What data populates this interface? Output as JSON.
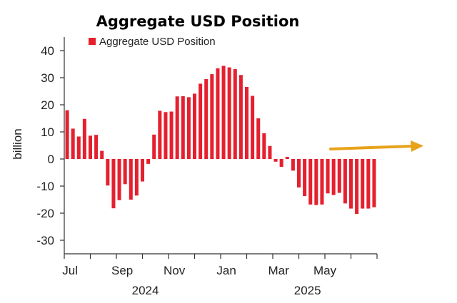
{
  "colors": {
    "bar": "#e5202e",
    "axis": "#333333",
    "annotation_arrow": "#e8a21a"
  },
  "annotation": {
    "icon": "arrow-right-icon"
  },
  "chart_data": {
    "type": "bar",
    "title": "Aggregate USD Position",
    "ylabel": "billion",
    "xlabel": "",
    "legend": {
      "position": "top-left",
      "entries": [
        "Aggregate USD Position"
      ]
    },
    "ylim": [
      -35,
      45
    ],
    "yticks": [
      40,
      30,
      20,
      10,
      0,
      -10,
      -20,
      -30
    ],
    "grid": false,
    "x_tick_labels": [
      {
        "label": "Jul",
        "index": 0.5
      },
      {
        "label": "Sep",
        "index": 9.5
      },
      {
        "label": "Nov",
        "index": 18.5
      },
      {
        "label": "Jan",
        "index": 27.5
      },
      {
        "label": "Mar",
        "index": 36.5
      },
      {
        "label": "May",
        "index": 44.5
      }
    ],
    "year_labels": [
      {
        "label": "2024",
        "index": 13.5
      },
      {
        "label": "2025",
        "index": 41.5
      }
    ],
    "series": [
      {
        "name": "Aggregate USD Position",
        "values": [
          18,
          11.2,
          8.3,
          14.8,
          8.6,
          8.9,
          3,
          -9.8,
          -18.2,
          -15.2,
          -9.3,
          -15,
          -13.5,
          -8.3,
          -1.8,
          9,
          17.8,
          17.3,
          17.5,
          23.1,
          23.2,
          22.8,
          24.1,
          27.8,
          29.5,
          31.3,
          33.5,
          34.4,
          33.8,
          33.2,
          31,
          26.6,
          23.3,
          15,
          9.5,
          4.8,
          -1,
          -2.9,
          0.8,
          -4.3,
          -10.5,
          -13.7,
          -16.8,
          -17,
          -16.8,
          -12.7,
          -13.3,
          -12.5,
          -16.4,
          -18.3,
          -20.3,
          -18.3,
          -18.3,
          -17.8
        ]
      }
    ]
  }
}
